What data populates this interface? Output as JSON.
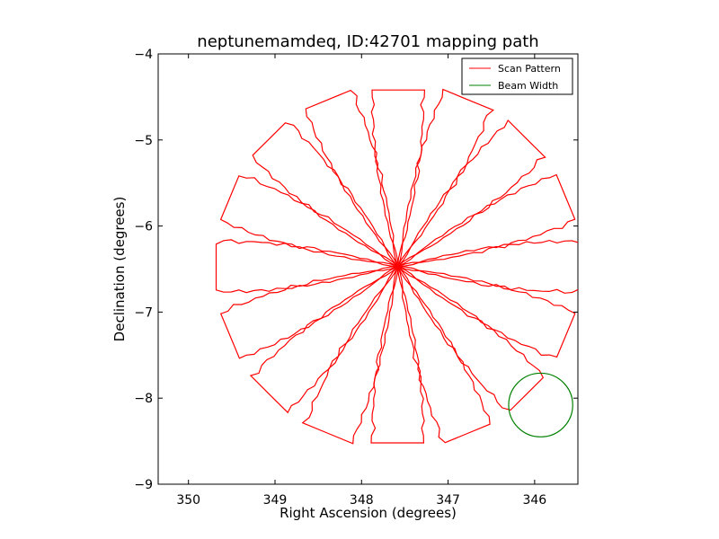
{
  "chart_data": {
    "type": "line",
    "title": "neptunemamdeq, ID:42701 mapping path",
    "xlabel": "Right Ascension (degrees)",
    "ylabel": "Declination (degrees)",
    "xlim": [
      350.35,
      345.5
    ],
    "ylim": [
      -9,
      -4
    ],
    "xticks": [
      350,
      349,
      348,
      347,
      346
    ],
    "xtick_labels": [
      "350",
      "349",
      "348",
      "347",
      "346"
    ],
    "yticks": [
      -4,
      -5,
      -6,
      -7,
      -8,
      -9
    ],
    "ytick_labels": [
      "−4",
      "−5",
      "−6",
      "−7",
      "−8",
      "−9"
    ],
    "grid": false,
    "legend_position": "top-right",
    "series": [
      {
        "name": "Scan Pattern",
        "color": "#ff0000",
        "center": {
          "ra": 347.58,
          "dec": -6.47
        },
        "petals": [
          {
            "angle_deg": 0,
            "length_deg": 2.1,
            "half_width_deg": 0.29
          },
          {
            "angle_deg": 22.5,
            "length_deg": 2.1,
            "half_width_deg": 0.29
          },
          {
            "angle_deg": 45,
            "length_deg": 2.1,
            "half_width_deg": 0.29
          },
          {
            "angle_deg": 67.5,
            "length_deg": 2.1,
            "half_width_deg": 0.29
          },
          {
            "angle_deg": 90,
            "length_deg": 2.05,
            "half_width_deg": 0.29
          },
          {
            "angle_deg": 112.5,
            "length_deg": 2.1,
            "half_width_deg": 0.29
          },
          {
            "angle_deg": 135,
            "length_deg": 2.1,
            "half_width_deg": 0.29
          },
          {
            "angle_deg": 157.5,
            "length_deg": 2.1,
            "half_width_deg": 0.29
          }
        ]
      },
      {
        "name": "Beam Width",
        "color": "#008000",
        "center": {
          "ra": 345.93,
          "dec": -8.08
        },
        "radius_deg": 0.37
      }
    ]
  }
}
